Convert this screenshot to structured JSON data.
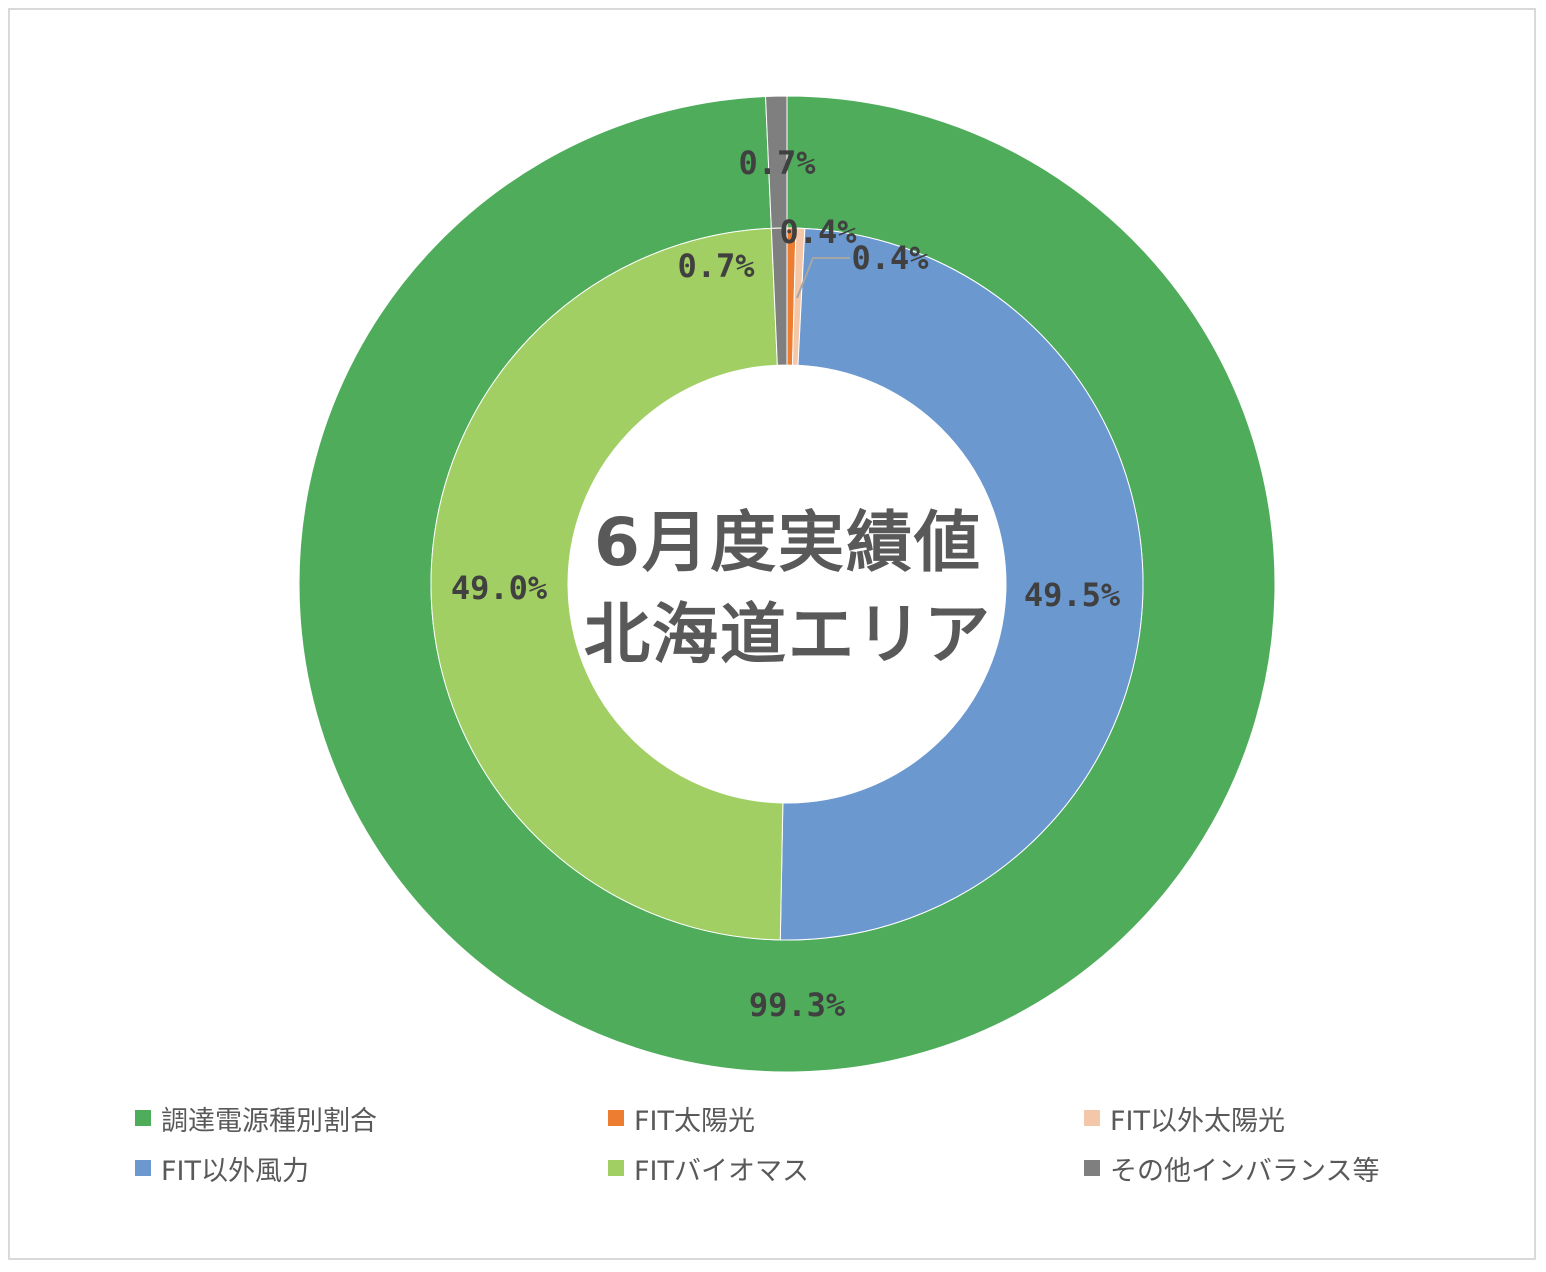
{
  "chart_data": {
    "type": "pie",
    "variant": "doughnut",
    "title": [
      "6月度実績値",
      "北海道エリア"
    ],
    "rings": [
      {
        "ring": "outer",
        "slices": [
          {
            "name": "調達電源種別割合",
            "value": 99.3,
            "label": "99.3%",
            "color": "#4eac5b"
          },
          {
            "name": "その他インバランス等",
            "value": 0.7,
            "label": "0.7%",
            "color": "#7f7f7f"
          }
        ]
      },
      {
        "ring": "inner",
        "slices": [
          {
            "name": "FIT太陽光",
            "value": 0.4,
            "label": "0.4%",
            "color": "#ed7d31"
          },
          {
            "name": "FIT以外太陽光",
            "value": 0.4,
            "label": "0.4%",
            "color": "#f4c7a8"
          },
          {
            "name": "FIT以外風力",
            "value": 49.5,
            "label": "49.5%",
            "color": "#6a98cf"
          },
          {
            "name": "FITバイオマス",
            "value": 49.0,
            "label": "49.0%",
            "color": "#a1cf63"
          },
          {
            "name": "その他インバランス等",
            "value": 0.7,
            "label": "0.7%",
            "color": "#7f7f7f"
          }
        ]
      }
    ],
    "legend": {
      "position": "bottom",
      "entries": [
        {
          "label": "調達電源種別割合",
          "color": "#4eac5b"
        },
        {
          "label": "FIT太陽光",
          "color": "#ed7d31"
        },
        {
          "label": "FIT以外太陽光",
          "color": "#f4c7a8"
        },
        {
          "label": "FIT以外風力",
          "color": "#6a98cf"
        },
        {
          "label": "FITバイオマス",
          "color": "#a1cf63"
        },
        {
          "label": "その他インバランス等",
          "color": "#7f7f7f"
        }
      ]
    }
  }
}
